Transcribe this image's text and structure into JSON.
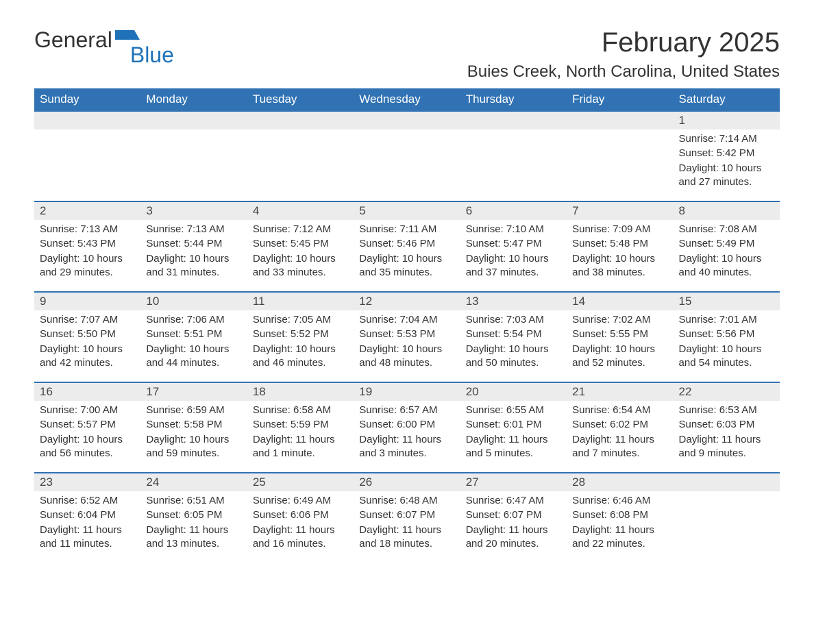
{
  "logo": {
    "text_general": "General",
    "text_blue": "Blue",
    "icon_color": "#1f72b8"
  },
  "title": {
    "month": "February 2025",
    "location": "Buies Creek, North Carolina, United States"
  },
  "colors": {
    "header_bg": "#3072b3",
    "header_text": "#ffffff",
    "day_number_bg": "#ececec",
    "text": "#333333",
    "row_border": "#3072b3"
  },
  "typography": {
    "month_title_size": 40,
    "location_size": 24,
    "header_size": 17,
    "day_number_size": 17,
    "body_size": 15
  },
  "day_labels": [
    "Sunday",
    "Monday",
    "Tuesday",
    "Wednesday",
    "Thursday",
    "Friday",
    "Saturday"
  ],
  "weeks": [
    [
      null,
      null,
      null,
      null,
      null,
      null,
      {
        "n": "1",
        "sunrise": "Sunrise: 7:14 AM",
        "sunset": "Sunset: 5:42 PM",
        "daylight": "Daylight: 10 hours and 27 minutes."
      }
    ],
    [
      {
        "n": "2",
        "sunrise": "Sunrise: 7:13 AM",
        "sunset": "Sunset: 5:43 PM",
        "daylight": "Daylight: 10 hours and 29 minutes."
      },
      {
        "n": "3",
        "sunrise": "Sunrise: 7:13 AM",
        "sunset": "Sunset: 5:44 PM",
        "daylight": "Daylight: 10 hours and 31 minutes."
      },
      {
        "n": "4",
        "sunrise": "Sunrise: 7:12 AM",
        "sunset": "Sunset: 5:45 PM",
        "daylight": "Daylight: 10 hours and 33 minutes."
      },
      {
        "n": "5",
        "sunrise": "Sunrise: 7:11 AM",
        "sunset": "Sunset: 5:46 PM",
        "daylight": "Daylight: 10 hours and 35 minutes."
      },
      {
        "n": "6",
        "sunrise": "Sunrise: 7:10 AM",
        "sunset": "Sunset: 5:47 PM",
        "daylight": "Daylight: 10 hours and 37 minutes."
      },
      {
        "n": "7",
        "sunrise": "Sunrise: 7:09 AM",
        "sunset": "Sunset: 5:48 PM",
        "daylight": "Daylight: 10 hours and 38 minutes."
      },
      {
        "n": "8",
        "sunrise": "Sunrise: 7:08 AM",
        "sunset": "Sunset: 5:49 PM",
        "daylight": "Daylight: 10 hours and 40 minutes."
      }
    ],
    [
      {
        "n": "9",
        "sunrise": "Sunrise: 7:07 AM",
        "sunset": "Sunset: 5:50 PM",
        "daylight": "Daylight: 10 hours and 42 minutes."
      },
      {
        "n": "10",
        "sunrise": "Sunrise: 7:06 AM",
        "sunset": "Sunset: 5:51 PM",
        "daylight": "Daylight: 10 hours and 44 minutes."
      },
      {
        "n": "11",
        "sunrise": "Sunrise: 7:05 AM",
        "sunset": "Sunset: 5:52 PM",
        "daylight": "Daylight: 10 hours and 46 minutes."
      },
      {
        "n": "12",
        "sunrise": "Sunrise: 7:04 AM",
        "sunset": "Sunset: 5:53 PM",
        "daylight": "Daylight: 10 hours and 48 minutes."
      },
      {
        "n": "13",
        "sunrise": "Sunrise: 7:03 AM",
        "sunset": "Sunset: 5:54 PM",
        "daylight": "Daylight: 10 hours and 50 minutes."
      },
      {
        "n": "14",
        "sunrise": "Sunrise: 7:02 AM",
        "sunset": "Sunset: 5:55 PM",
        "daylight": "Daylight: 10 hours and 52 minutes."
      },
      {
        "n": "15",
        "sunrise": "Sunrise: 7:01 AM",
        "sunset": "Sunset: 5:56 PM",
        "daylight": "Daylight: 10 hours and 54 minutes."
      }
    ],
    [
      {
        "n": "16",
        "sunrise": "Sunrise: 7:00 AM",
        "sunset": "Sunset: 5:57 PM",
        "daylight": "Daylight: 10 hours and 56 minutes."
      },
      {
        "n": "17",
        "sunrise": "Sunrise: 6:59 AM",
        "sunset": "Sunset: 5:58 PM",
        "daylight": "Daylight: 10 hours and 59 minutes."
      },
      {
        "n": "18",
        "sunrise": "Sunrise: 6:58 AM",
        "sunset": "Sunset: 5:59 PM",
        "daylight": "Daylight: 11 hours and 1 minute."
      },
      {
        "n": "19",
        "sunrise": "Sunrise: 6:57 AM",
        "sunset": "Sunset: 6:00 PM",
        "daylight": "Daylight: 11 hours and 3 minutes."
      },
      {
        "n": "20",
        "sunrise": "Sunrise: 6:55 AM",
        "sunset": "Sunset: 6:01 PM",
        "daylight": "Daylight: 11 hours and 5 minutes."
      },
      {
        "n": "21",
        "sunrise": "Sunrise: 6:54 AM",
        "sunset": "Sunset: 6:02 PM",
        "daylight": "Daylight: 11 hours and 7 minutes."
      },
      {
        "n": "22",
        "sunrise": "Sunrise: 6:53 AM",
        "sunset": "Sunset: 6:03 PM",
        "daylight": "Daylight: 11 hours and 9 minutes."
      }
    ],
    [
      {
        "n": "23",
        "sunrise": "Sunrise: 6:52 AM",
        "sunset": "Sunset: 6:04 PM",
        "daylight": "Daylight: 11 hours and 11 minutes."
      },
      {
        "n": "24",
        "sunrise": "Sunrise: 6:51 AM",
        "sunset": "Sunset: 6:05 PM",
        "daylight": "Daylight: 11 hours and 13 minutes."
      },
      {
        "n": "25",
        "sunrise": "Sunrise: 6:49 AM",
        "sunset": "Sunset: 6:06 PM",
        "daylight": "Daylight: 11 hours and 16 minutes."
      },
      {
        "n": "26",
        "sunrise": "Sunrise: 6:48 AM",
        "sunset": "Sunset: 6:07 PM",
        "daylight": "Daylight: 11 hours and 18 minutes."
      },
      {
        "n": "27",
        "sunrise": "Sunrise: 6:47 AM",
        "sunset": "Sunset: 6:07 PM",
        "daylight": "Daylight: 11 hours and 20 minutes."
      },
      {
        "n": "28",
        "sunrise": "Sunrise: 6:46 AM",
        "sunset": "Sunset: 6:08 PM",
        "daylight": "Daylight: 11 hours and 22 minutes."
      },
      null
    ]
  ]
}
